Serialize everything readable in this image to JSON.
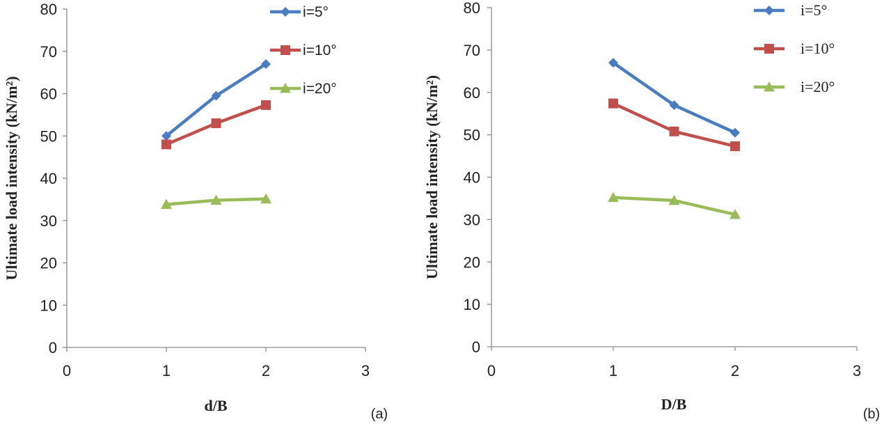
{
  "chart_data": [
    {
      "type": "line",
      "panel_label": "(a)",
      "xlabel": "d/B",
      "ylabel": "Ultimate load intensity (kN/m²)",
      "xlim": [
        0,
        3
      ],
      "ylim": [
        0,
        80
      ],
      "xticks": [
        "0",
        "1",
        "2",
        "3"
      ],
      "yticks": [
        "0",
        "10",
        "20",
        "30",
        "40",
        "50",
        "60",
        "70",
        "80"
      ],
      "grid": false,
      "legend_position": "top-right",
      "x": [
        1,
        1.5,
        2
      ],
      "series": [
        {
          "name": "i=5°",
          "values": [
            50,
            59.5,
            67
          ],
          "color": "#4a7dbf",
          "marker": "diamond"
        },
        {
          "name": "i=10°",
          "values": [
            48,
            53,
            57.3
          ],
          "color": "#c0504d",
          "marker": "square"
        },
        {
          "name": "i=20°",
          "values": [
            33.8,
            34.8,
            35.1
          ],
          "color": "#9bbb59",
          "marker": "triangle"
        }
      ]
    },
    {
      "type": "line",
      "panel_label": "(b)",
      "xlabel": "D/B",
      "ylabel": "Ultimate load intensity (kN/m²)",
      "xlim": [
        0,
        3
      ],
      "ylim": [
        0,
        80
      ],
      "xticks": [
        "0",
        "1",
        "2",
        "3"
      ],
      "yticks": [
        "0",
        "10",
        "20",
        "30",
        "40",
        "50",
        "60",
        "70",
        "80"
      ],
      "grid": false,
      "legend_position": "top-right",
      "x": [
        1,
        1.5,
        2
      ],
      "series": [
        {
          "name": "i=5°",
          "values": [
            67,
            57,
            50.5
          ],
          "color": "#4a7dbf",
          "marker": "diamond"
        },
        {
          "name": "i=10°",
          "values": [
            57.4,
            50.8,
            47.3
          ],
          "color": "#c0504d",
          "marker": "square"
        },
        {
          "name": "i=20°",
          "values": [
            35.2,
            34.5,
            31.2
          ],
          "color": "#9bbb59",
          "marker": "triangle"
        }
      ]
    }
  ]
}
